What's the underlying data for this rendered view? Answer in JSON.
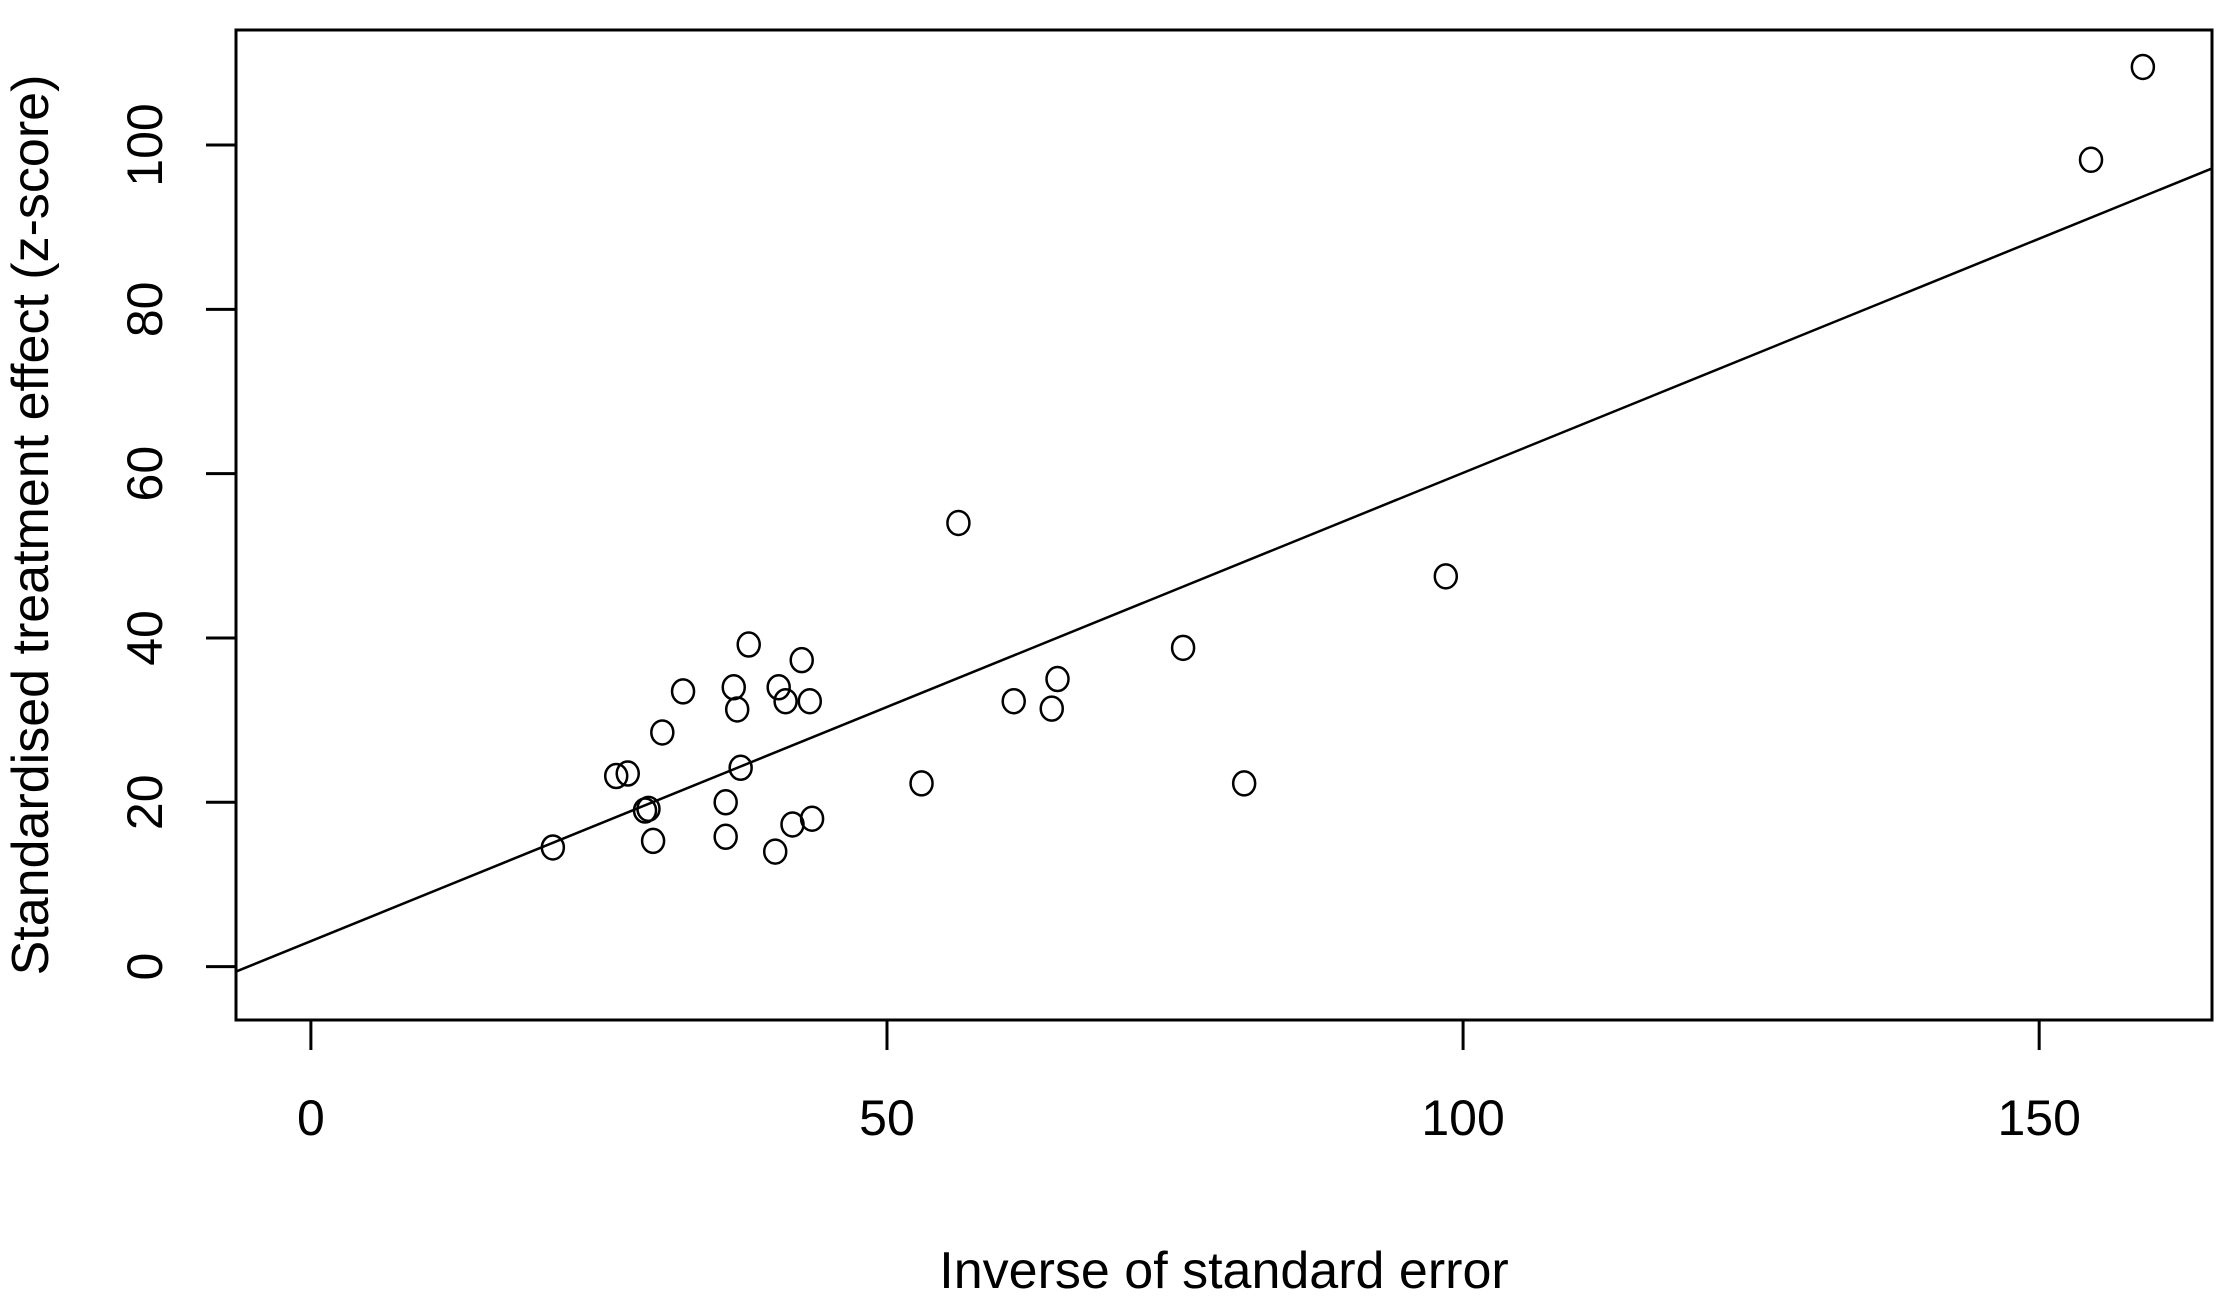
{
  "chart_data": {
    "type": "scatter",
    "title": "",
    "xlabel": "Inverse of standard error",
    "ylabel": "Standardised treatment effect (z-score)",
    "xlim": [
      -6.5,
      165
    ],
    "ylim": [
      -6.5,
      114
    ],
    "x_ticks": [
      0,
      50,
      100,
      150
    ],
    "y_ticks": [
      0,
      20,
      40,
      60,
      80,
      100
    ],
    "grid": false,
    "legend": "none",
    "points": [
      {
        "x": 21,
        "y": 14.5
      },
      {
        "x": 26.5,
        "y": 23.2
      },
      {
        "x": 27.5,
        "y": 23.5
      },
      {
        "x": 29,
        "y": 19
      },
      {
        "x": 29.3,
        "y": 19.2
      },
      {
        "x": 29.7,
        "y": 15.3
      },
      {
        "x": 30.5,
        "y": 28.5
      },
      {
        "x": 32.3,
        "y": 33.5
      },
      {
        "x": 36,
        "y": 20
      },
      {
        "x": 36,
        "y": 15.8
      },
      {
        "x": 36.7,
        "y": 34
      },
      {
        "x": 37,
        "y": 31.3
      },
      {
        "x": 37.3,
        "y": 24.2
      },
      {
        "x": 38,
        "y": 39.2
      },
      {
        "x": 40.3,
        "y": 14
      },
      {
        "x": 40.6,
        "y": 34
      },
      {
        "x": 41.2,
        "y": 32.3
      },
      {
        "x": 41.8,
        "y": 17.3
      },
      {
        "x": 42.6,
        "y": 37.3
      },
      {
        "x": 43.3,
        "y": 32.3
      },
      {
        "x": 43.5,
        "y": 18
      },
      {
        "x": 53,
        "y": 22.3
      },
      {
        "x": 56.2,
        "y": 54
      },
      {
        "x": 61,
        "y": 32.3
      },
      {
        "x": 64.3,
        "y": 31.4
      },
      {
        "x": 64.8,
        "y": 35
      },
      {
        "x": 75.7,
        "y": 38.8
      },
      {
        "x": 81,
        "y": 22.3
      },
      {
        "x": 98.5,
        "y": 47.5
      },
      {
        "x": 154.5,
        "y": 98.2
      },
      {
        "x": 159,
        "y": 109.5
      }
    ],
    "fit_line": {
      "intercept": 3.1,
      "slope": 0.57
    },
    "colors": {
      "ink": "#000000",
      "background": "#ffffff"
    }
  }
}
